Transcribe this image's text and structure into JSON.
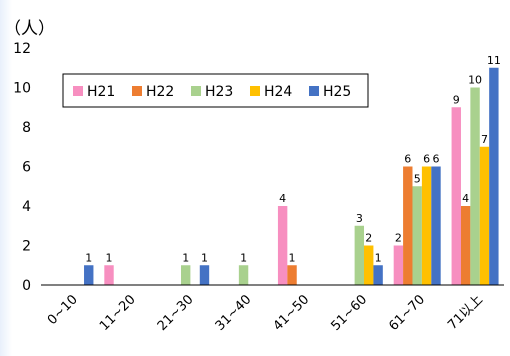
{
  "chart_data": {
    "type": "bar",
    "unit_label": "（人）",
    "categories": [
      "0~10",
      "11~20",
      "21~30",
      "31~40",
      "41~50",
      "51~60",
      "61~70",
      "71以上"
    ],
    "ylim": [
      0,
      12
    ],
    "yticks": [
      0,
      2,
      4,
      6,
      8,
      10,
      12
    ],
    "grid": false,
    "legend_position": "top-left",
    "series": [
      {
        "name": "H21",
        "color": "#f78fc0",
        "values": [
          0,
          1,
          0,
          0,
          4,
          0,
          2,
          9
        ]
      },
      {
        "name": "H22",
        "color": "#ed7d31",
        "values": [
          0,
          0,
          0,
          0,
          1,
          0,
          6,
          4
        ]
      },
      {
        "name": "H23",
        "color": "#a9d18e",
        "values": [
          0,
          0,
          1,
          1,
          0,
          3,
          5,
          10
        ]
      },
      {
        "name": "H24",
        "color": "#ffc000",
        "values": [
          0,
          0,
          0,
          0,
          0,
          2,
          6,
          7
        ]
      },
      {
        "name": "H25",
        "color": "#4472c4",
        "values": [
          1,
          0,
          1,
          0,
          0,
          1,
          6,
          11
        ]
      }
    ]
  }
}
